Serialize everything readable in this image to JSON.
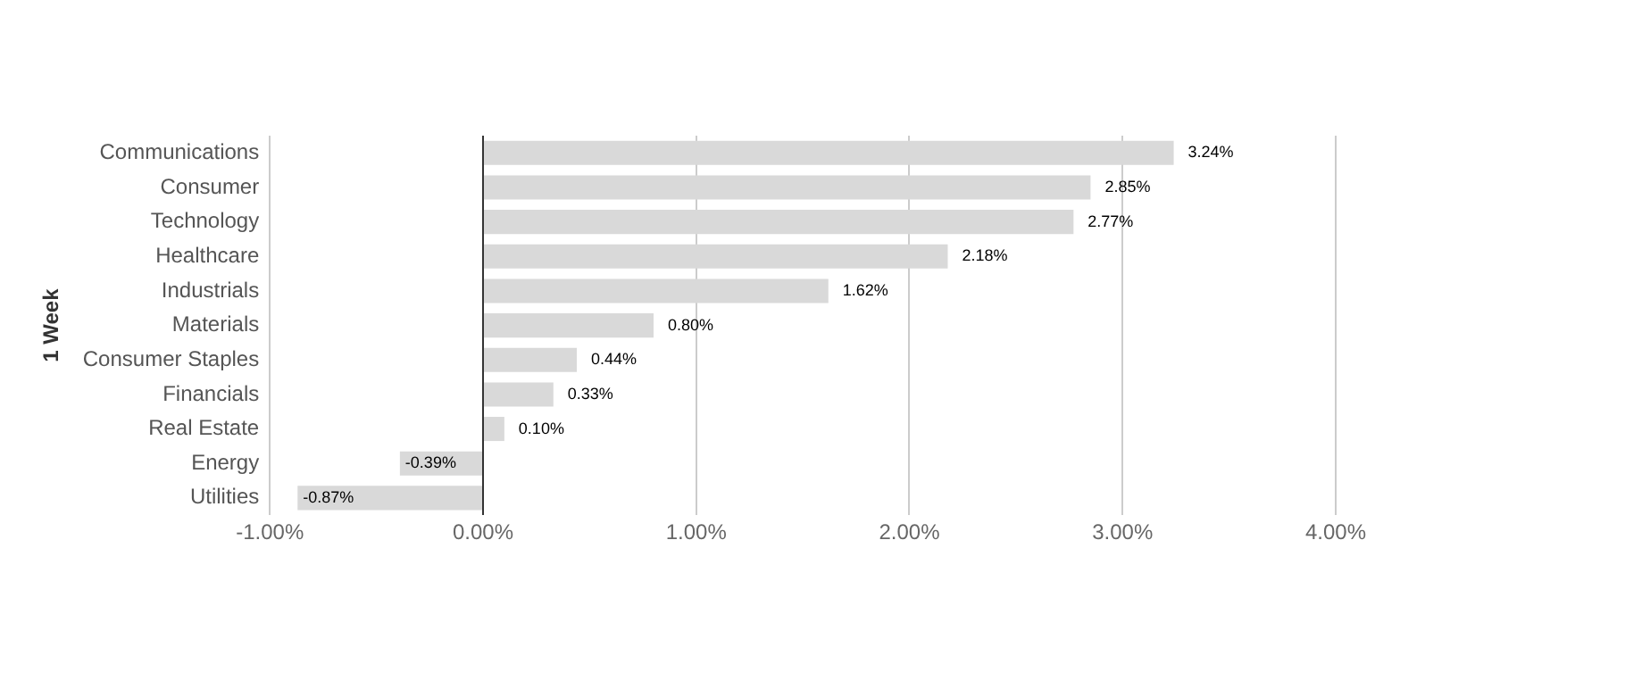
{
  "chart_data": {
    "type": "bar",
    "orientation": "horizontal",
    "ylabel": "1 Week",
    "categories": [
      "Communications",
      "Consumer",
      "Technology",
      "Healthcare",
      "Industrials",
      "Materials",
      "Consumer Staples",
      "Financials",
      "Real Estate",
      "Energy",
      "Utilities"
    ],
    "values": [
      3.24,
      2.85,
      2.77,
      2.18,
      1.62,
      0.8,
      0.44,
      0.33,
      0.1,
      -0.39,
      -0.87
    ],
    "value_labels": [
      "3.24%",
      "2.85%",
      "2.77%",
      "2.18%",
      "1.62%",
      "0.80%",
      "0.44%",
      "0.33%",
      "0.10%",
      "-0.39%",
      "-0.87%"
    ],
    "color": "#d9d9d9",
    "xlim": [
      -1,
      4
    ],
    "xticks": [
      {
        "value": -1,
        "label": "-1.00%"
      },
      {
        "value": 0,
        "label": "0.00%"
      },
      {
        "value": 1,
        "label": "1.00%"
      },
      {
        "value": 2,
        "label": "2.00%"
      },
      {
        "value": 3,
        "label": "3.00%"
      },
      {
        "value": 4,
        "label": "4.00%"
      }
    ],
    "grid": "x",
    "legend": false
  }
}
